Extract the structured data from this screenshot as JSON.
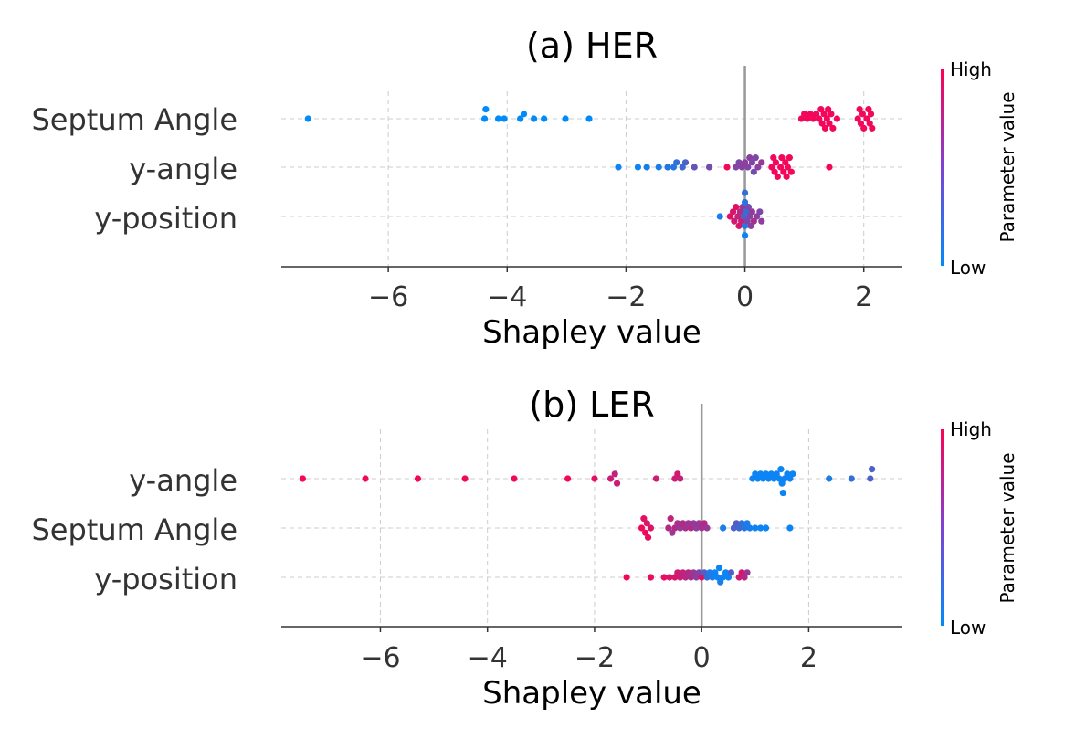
{
  "chart_data": [
    {
      "type": "scatter",
      "title": "(a) HER",
      "xlabel": "Shapley value",
      "xlim": [
        -7.8,
        2.65
      ],
      "xticks": [
        -6,
        -4,
        -2,
        0,
        2
      ],
      "xtick_labels": [
        "−6",
        "−4",
        "−2",
        "0",
        "2"
      ],
      "features": [
        "Septum Angle",
        "y-angle",
        "y-position"
      ],
      "colorbar": {
        "label": "Parameter value",
        "high": "High",
        "low": "Low"
      },
      "colors": {
        "low": "#008bfb",
        "high": "#ff0052"
      },
      "series": [
        {
          "name": "Septum Angle",
          "points": [
            [
              -7.35,
              0.0
            ],
            [
              -4.38,
              0.0
            ],
            [
              -4.36,
              0.0
            ],
            [
              -4.15,
              0.0
            ],
            [
              -4.05,
              0.0
            ],
            [
              -3.78,
              0.0
            ],
            [
              -3.72,
              0.0
            ],
            [
              -3.55,
              0.0
            ],
            [
              -3.38,
              0.0
            ],
            [
              -3.02,
              0.0
            ],
            [
              -2.62,
              0.0
            ],
            [
              0.95,
              0.95
            ],
            [
              1.0,
              0.95
            ],
            [
              1.05,
              0.95
            ],
            [
              1.1,
              0.95
            ],
            [
              1.15,
              0.95
            ],
            [
              1.2,
              0.95
            ],
            [
              1.25,
              0.95
            ],
            [
              1.28,
              0.95
            ],
            [
              1.3,
              0.95
            ],
            [
              1.33,
              0.95
            ],
            [
              1.35,
              0.95
            ],
            [
              1.38,
              0.95
            ],
            [
              1.4,
              0.95
            ],
            [
              1.42,
              0.95
            ],
            [
              1.45,
              0.95
            ],
            [
              1.48,
              0.95
            ],
            [
              1.55,
              0.95
            ],
            [
              1.9,
              0.95
            ],
            [
              1.93,
              0.95
            ],
            [
              1.95,
              0.95
            ],
            [
              1.98,
              0.95
            ],
            [
              2.0,
              0.95
            ],
            [
              2.05,
              0.95
            ],
            [
              2.08,
              0.95
            ],
            [
              2.1,
              0.95
            ],
            [
              2.12,
              0.95
            ],
            [
              2.14,
              0.95
            ]
          ]
        },
        {
          "name": "y-angle",
          "points": [
            [
              -2.13,
              0.05
            ],
            [
              -1.8,
              0.05
            ],
            [
              -1.65,
              0.1
            ],
            [
              -1.45,
              0.1
            ],
            [
              -1.3,
              0.15
            ],
            [
              -1.2,
              0.15
            ],
            [
              -1.15,
              0.2
            ],
            [
              -1.05,
              0.25
            ],
            [
              -1.0,
              0.3
            ],
            [
              -0.85,
              0.4
            ],
            [
              -0.6,
              0.45
            ],
            [
              -0.3,
              0.95
            ],
            [
              -0.15,
              0.5
            ],
            [
              -0.1,
              0.5
            ],
            [
              -0.05,
              0.55
            ],
            [
              0.0,
              0.55
            ],
            [
              0.05,
              0.5
            ],
            [
              0.08,
              0.55
            ],
            [
              0.12,
              0.5
            ],
            [
              0.15,
              0.45
            ],
            [
              0.18,
              0.5
            ],
            [
              0.22,
              0.55
            ],
            [
              0.28,
              0.6
            ],
            [
              0.45,
              0.95
            ],
            [
              0.48,
              0.95
            ],
            [
              0.5,
              0.95
            ],
            [
              0.52,
              0.95
            ],
            [
              0.55,
              0.95
            ],
            [
              0.6,
              0.95
            ],
            [
              0.62,
              0.95
            ],
            [
              0.65,
              0.95
            ],
            [
              0.68,
              0.95
            ],
            [
              0.7,
              0.95
            ],
            [
              0.72,
              0.95
            ],
            [
              0.75,
              0.95
            ],
            [
              0.78,
              0.95
            ],
            [
              1.42,
              0.95
            ]
          ]
        },
        {
          "name": "y-position",
          "points": [
            [
              -0.42,
              0.1
            ],
            [
              -0.25,
              0.9
            ],
            [
              -0.2,
              0.85
            ],
            [
              -0.18,
              0.8
            ],
            [
              -0.15,
              0.9
            ],
            [
              -0.12,
              0.75
            ],
            [
              -0.1,
              0.85
            ],
            [
              -0.08,
              0.7
            ],
            [
              -0.06,
              0.8
            ],
            [
              -0.04,
              0.6
            ],
            [
              -0.02,
              0.3
            ],
            [
              0.0,
              0.1
            ],
            [
              0.0,
              0.15
            ],
            [
              0.0,
              0.05
            ],
            [
              0.0,
              0.2
            ],
            [
              0.02,
              0.2
            ],
            [
              0.04,
              0.5
            ],
            [
              0.06,
              0.45
            ],
            [
              0.08,
              0.5
            ],
            [
              0.1,
              0.55
            ],
            [
              0.12,
              0.6
            ],
            [
              0.15,
              0.65
            ],
            [
              0.2,
              0.55
            ],
            [
              0.25,
              0.5
            ],
            [
              0.28,
              0.55
            ]
          ]
        }
      ]
    },
    {
      "type": "scatter",
      "title": "(b) LER",
      "xlabel": "Shapley value",
      "xlim": [
        -7.85,
        3.75
      ],
      "xticks": [
        -6,
        -4,
        -2,
        0,
        2
      ],
      "xtick_labels": [
        "−6",
        "−4",
        "−2",
        "0",
        "2"
      ],
      "features": [
        "y-angle",
        "Septum Angle",
        "y-position"
      ],
      "colorbar": {
        "label": "Parameter value",
        "high": "High",
        "low": "Low"
      },
      "colors": {
        "low": "#008bfb",
        "high": "#ff0052"
      },
      "series": [
        {
          "name": "y-angle",
          "points": [
            [
              -7.45,
              0.95
            ],
            [
              -6.28,
              0.95
            ],
            [
              -5.3,
              0.95
            ],
            [
              -4.42,
              0.95
            ],
            [
              -3.5,
              0.95
            ],
            [
              -2.5,
              0.95
            ],
            [
              -2.0,
              0.9
            ],
            [
              -1.7,
              0.8
            ],
            [
              -1.62,
              0.75
            ],
            [
              -1.58,
              0.8
            ],
            [
              -0.85,
              0.8
            ],
            [
              -0.5,
              0.8
            ],
            [
              -0.45,
              0.85
            ],
            [
              -0.4,
              0.75
            ],
            [
              0.95,
              0.05
            ],
            [
              1.0,
              0.05
            ],
            [
              1.05,
              0.05
            ],
            [
              1.1,
              0.05
            ],
            [
              1.15,
              0.05
            ],
            [
              1.2,
              0.05
            ],
            [
              1.25,
              0.05
            ],
            [
              1.3,
              0.05
            ],
            [
              1.35,
              0.05
            ],
            [
              1.4,
              0.05
            ],
            [
              1.45,
              0.05
            ],
            [
              1.48,
              0.05
            ],
            [
              1.5,
              0.05
            ],
            [
              1.52,
              0.05
            ],
            [
              1.55,
              0.05
            ],
            [
              1.6,
              0.05
            ],
            [
              1.65,
              0.05
            ],
            [
              1.7,
              0.05
            ],
            [
              2.38,
              0.1
            ],
            [
              2.8,
              0.2
            ],
            [
              3.15,
              0.3
            ],
            [
              3.18,
              0.3
            ]
          ]
        },
        {
          "name": "Septum Angle",
          "points": [
            [
              -1.12,
              0.95
            ],
            [
              -1.08,
              0.9
            ],
            [
              -1.05,
              0.95
            ],
            [
              -1.02,
              0.85
            ],
            [
              -1.0,
              0.9
            ],
            [
              -0.95,
              0.85
            ],
            [
              -0.62,
              0.7
            ],
            [
              -0.58,
              0.75
            ],
            [
              -0.55,
              0.6
            ],
            [
              -0.5,
              0.7
            ],
            [
              -0.45,
              0.65
            ],
            [
              -0.4,
              0.6
            ],
            [
              -0.35,
              0.7
            ],
            [
              -0.3,
              0.65
            ],
            [
              -0.25,
              0.6
            ],
            [
              -0.2,
              0.7
            ],
            [
              -0.15,
              0.6
            ],
            [
              -0.1,
              0.55
            ],
            [
              -0.05,
              0.6
            ],
            [
              0.0,
              0.65
            ],
            [
              0.05,
              0.7
            ],
            [
              0.1,
              0.6
            ],
            [
              0.4,
              0.1
            ],
            [
              0.6,
              0.3
            ],
            [
              0.65,
              0.35
            ],
            [
              0.7,
              0.25
            ],
            [
              0.75,
              0.2
            ],
            [
              0.8,
              0.15
            ],
            [
              0.85,
              0.1
            ],
            [
              0.9,
              0.1
            ],
            [
              1.0,
              0.05
            ],
            [
              1.1,
              0.05
            ],
            [
              1.2,
              0.05
            ],
            [
              1.65,
              0.05
            ]
          ]
        },
        {
          "name": "y-position",
          "points": [
            [
              -1.4,
              0.95
            ],
            [
              -0.95,
              0.9
            ],
            [
              -0.7,
              0.9
            ],
            [
              -0.6,
              0.85
            ],
            [
              -0.5,
              0.85
            ],
            [
              -0.45,
              0.8
            ],
            [
              -0.4,
              0.8
            ],
            [
              -0.35,
              0.75
            ],
            [
              -0.3,
              0.7
            ],
            [
              -0.25,
              0.7
            ],
            [
              -0.2,
              0.65
            ],
            [
              -0.15,
              0.6
            ],
            [
              -0.1,
              0.55
            ],
            [
              -0.05,
              0.5
            ],
            [
              0.0,
              0.9
            ],
            [
              0.05,
              0.3
            ],
            [
              0.1,
              0.2
            ],
            [
              0.15,
              0.1
            ],
            [
              0.2,
              0.1
            ],
            [
              0.25,
              0.05
            ],
            [
              0.3,
              0.05
            ],
            [
              0.33,
              0.05
            ],
            [
              0.35,
              0.1
            ],
            [
              0.4,
              0.05
            ],
            [
              0.45,
              0.05
            ],
            [
              0.5,
              0.05
            ],
            [
              0.55,
              0.3
            ],
            [
              0.7,
              0.8
            ],
            [
              0.75,
              0.85
            ],
            [
              0.8,
              0.7
            ],
            [
              0.85,
              0.6
            ]
          ]
        }
      ]
    }
  ]
}
